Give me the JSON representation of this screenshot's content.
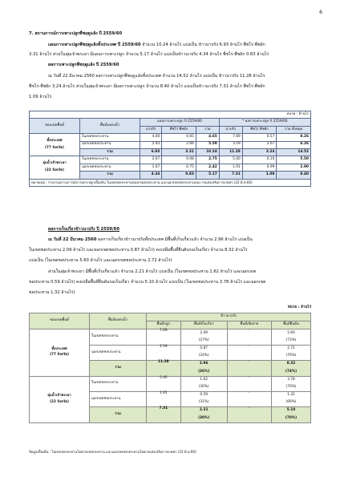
{
  "page_number": "6",
  "section_title": "7. สถานการณ์การเพาะปลูกพืชฤดูแล้ง ปี 2559/60",
  "plan": {
    "heading": "แผนการเพาะปลูกพืชฤดูแล้งทั้งประเทศ ปี 2559/60",
    "line1_rest": " จำนวน 10.24 ล้านไร่ แบ่งเป็น ข้าวนาปรัง 6.93 ล้านไร่ พืชไร่-พืชผัก",
    "line2": "3.31 ล้านไร่ ส่วนในลุ่มเจ้าพระยา มีแผนการเพาะปลูก จำนวน 5.17 ล้านไร่ แบ่งเป็นข้าวนาปรัง 4.34 ล้านไร่ พืชไร่-พืชผัก 0.83 ล้านไร่"
  },
  "result": {
    "heading": "ผลการเพาะปลูกพืชฤดูแล้ง ปี 2559/60",
    "line1": "ณ วันที่ 22 มีนาคม 2560 ผลการเพาะปลูกพืชฤดูแล้งทั้งประเทศ จำนวน 14.52 ล้านไร่ แบ่งเป็น ข้าวนาปรัง 11.28 ล้านไร่",
    "line2": "พืชไร่-พืชผัก 3.24 ล้านไร่ ส่วนในลุ่มเจ้าพระยา มีผลการเพาะปลูก จำนวน 8.40 ล้านไร่ แบ่งเป็นข้าวนาปรัง 7.31 ล้านไร่ พืชไร่-พืชผัก",
    "line3": "1.09 ล้านไร่"
  },
  "table1": {
    "unit": "หน่วย : ล้านไร่",
    "col_zone": "ขอบเขตพื้นที่",
    "col_area": "พื้นที่แหล่งน้ำ",
    "col_plan": "แผนการเพาะปลูก ปี 2559/60",
    "col_result": "* ผลการเพาะปลูก ปี 2559/60",
    "sub_rice": "นาปรัง",
    "sub_field": "พืชไร่ พืชผัก",
    "sub_total": "รวม",
    "sub_rice2": "นาปรัง",
    "sub_field2": "พืชไร่ พืชผัก",
    "sub_total2": "รวม ทั้งหมด",
    "groups": [
      {
        "name": "ทั้งประเทศ",
        "sub": "(77 จังหวัด)",
        "rows": [
          {
            "label": "ในเขตชลประทาน",
            "v": [
              "4.00",
              "0.65",
              "4.65",
              "7.69",
              "0.57",
              "8.26"
            ]
          },
          {
            "label": "นอกเขตชลประทาน",
            "v": [
              "2.93",
              "2.66",
              "5.59",
              "3.59",
              "2.67",
              "6.26"
            ]
          },
          {
            "label": "รวม",
            "v": [
              "6.93",
              "3.31",
              "10.24",
              "11.28",
              "3.24",
              "14.52"
            ]
          }
        ]
      },
      {
        "name": "ลุ่มน้ำเจ้าพระยา",
        "sub": "(22 จังหวัด)",
        "rows": [
          {
            "label": "ในเขตชลประทาน",
            "v": [
              "2.67",
              "0.08",
              "2.75",
              "5.40",
              "0.10",
              "5.50"
            ]
          },
          {
            "label": "นอกเขตชลประทาน",
            "v": [
              "1.67",
              "0.75",
              "2.42",
              "1.91",
              "0.99",
              "2.90"
            ]
          },
          {
            "label": "รวม",
            "v": [
              "4.34",
              "0.83",
              "5.17",
              "7.31",
              "1.09",
              "8.40"
            ]
          }
        ]
      }
    ],
    "note": "หมายเหตุ : รายงานสถานการณ์การเพาะปลูกเบื้องต้น ในเขตชลประทานของกรมชลประทาน และนอกเขตชลประทานของ กรมส่งเสริมการเกษตร (22 มี.ค.60)"
  },
  "harvest": {
    "heading": "ผลการเก็บเกี่ยวข้าวนาปรัง ปี 2559/60",
    "line1_bold": "ณ วันที่ 22 มีนาคม 2560",
    "line1_rest": " ผลการเก็บเกี่ยวข้าวนาปรังทั้งประเทศ มีพื้นที่เก็บเกี่ยวแล้ว จำนวน 2.96 ล้านไร่ แบ่งเป็น",
    "line2": "ในเขตชลประทาน 2.09 ล้านไร่ และนอกเขตชลประทาน 0.87 ล้านไร่) คงเหลือพื้นที่ยืนต้นรอเก็บเกี่ยว จำนวน 8.32 ล้านไร่",
    "line3": "แบ่งเป็น (ในเขตชลประทาน 5.60 ล้านไร่ และนอกเขตชลประทาน 2.72 ล้านไร่)",
    "line4": "ส่วนในลุ่มเจ้าพระยา มีพื้นที่เก็บเกี่ยวแล้ว จำนวน 2.21 ล้านไร่ แบ่งเป็น (ในเขตชลประทาน 1.62 ล้านไร่ และนอกเขต",
    "line5": "ชลประทาน 0.59 ล้านไร่) คงเหลือพื้นที่ยืนต้นรอเก็บเกี่ยว จำนวน 5.10 ล้านไร่ แบ่งเป็น (ในเขตชลประทาน 3.78 ล้านไร่ และนอกเขต",
    "line6": "ชลประทาน 1.32 ล้านไร่)"
  },
  "table2": {
    "unit": "หน่วย : ล้านไร่",
    "col_zone": "ขอบเขตพื้นที่",
    "col_area": "พื้นที่แหล่งน้ำ",
    "col_rice": "ข้าวนาปรัง",
    "sub": [
      "พื้นที่ปลูก",
      "พื้นที่เก็บเกี่ยว",
      "พื้นที่เสียหาย",
      "พื้นที่ยืนต้น"
    ],
    "groups": [
      {
        "name": "ทั้งประเทศ",
        "sub": "(77 จังหวัด)",
        "rows": [
          {
            "label": "ในเขตชลประทาน",
            "plant": "7.69",
            "harvest": "2.09",
            "harvest_pct": "(27%)",
            "damage": "-",
            "remain": "5.60",
            "remain_pct": "(73%)"
          },
          {
            "label": "นอกเขตชลประทาน",
            "plant": "3.59",
            "harvest": "0.87",
            "harvest_pct": "(24%)",
            "damage": "-",
            "remain": "2.72",
            "remain_pct": "(76%)"
          },
          {
            "label": "รวม",
            "plant": "11.28",
            "harvest": "2.96",
            "harvest_pct": "(26%)",
            "damage": "-",
            "remain": "8.32",
            "remain_pct": "(74%)"
          }
        ]
      },
      {
        "name": "ลุ่มน้ำเจ้าพระยา",
        "sub": "(22 จังหวัด)",
        "rows": [
          {
            "label": "ในเขตชลประทาน",
            "plant": "5.40",
            "harvest": "1.62",
            "harvest_pct": "(30%)",
            "damage": "-",
            "remain": "3.78",
            "remain_pct": "(70%)"
          },
          {
            "label": "นอกเขตชลประทาน",
            "plant": "1.91",
            "harvest": "0.59",
            "harvest_pct": "(31%)",
            "damage": "-",
            "remain": "1.32",
            "remain_pct": "(69%)"
          },
          {
            "label": "รวม",
            "plant": "7.31",
            "harvest": "2.21",
            "harvest_pct": "(30%)",
            "damage": "-",
            "remain": "5.10",
            "remain_pct": "(70%)"
          }
        ]
      }
    ],
    "source": "ข้อมูลเบื้องต้น : ในเขตชลประทานโดยกรมชลประทาน และนอกเขตชลประทานโดยกรมส่งเสริมการเกษตร (22 มี.ค.60)"
  }
}
